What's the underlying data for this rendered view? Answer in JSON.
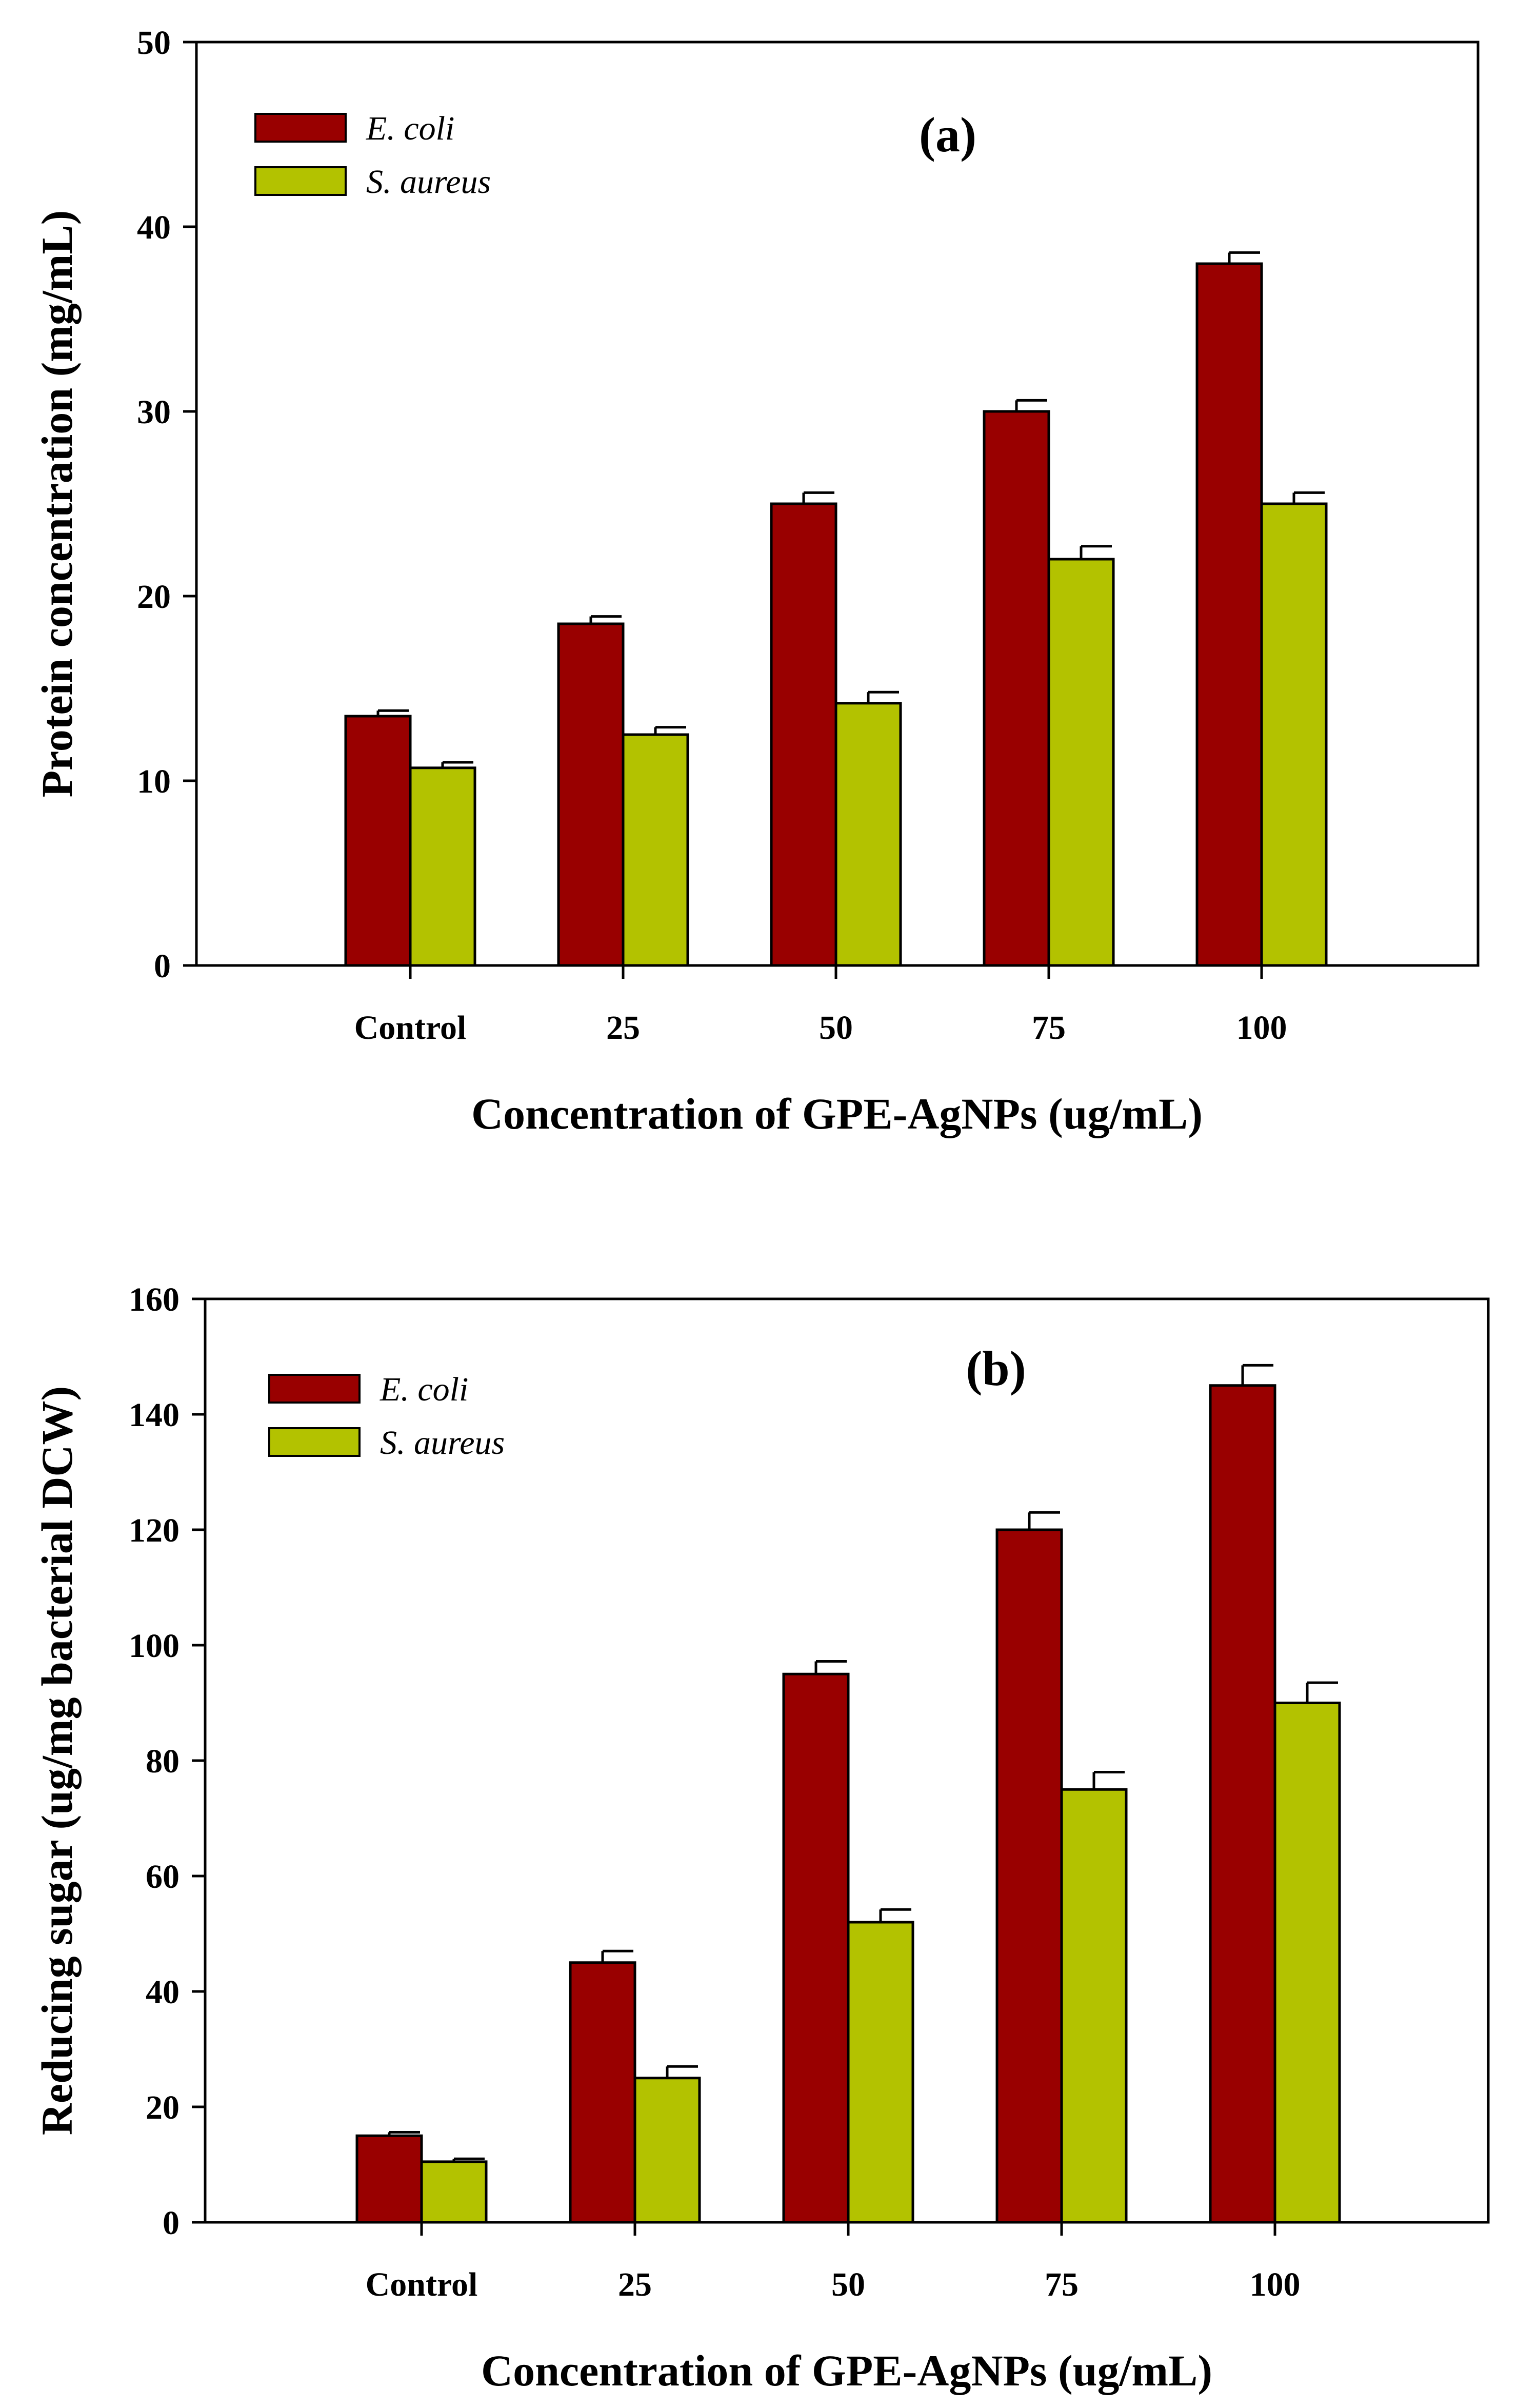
{
  "colors": {
    "ecoli": "#990000",
    "saureus": "#b3c200",
    "axis": "#000000"
  },
  "chart_data": [
    {
      "type": "bar",
      "panel": "(a)",
      "title": "",
      "xlabel": "Concentration of GPE-AgNPs (ug/mL)",
      "ylabel": "Protein concentration (mg/mL)",
      "ylim": [
        0,
        50
      ],
      "yticks": [
        "0",
        "10",
        "20",
        "30",
        "40",
        "50"
      ],
      "categories": [
        "Control",
        "25",
        "50",
        "75",
        "100"
      ],
      "legend_position": "top-left",
      "series": [
        {
          "name": "E. coli",
          "values": [
            13.5,
            18.5,
            25,
            30,
            38
          ],
          "errors": [
            0.3,
            0.4,
            0.6,
            0.6,
            0.6
          ]
        },
        {
          "name": "S. aureus",
          "values": [
            10.7,
            12.5,
            14.2,
            22,
            25
          ],
          "errors": [
            0.3,
            0.4,
            0.6,
            0.7,
            0.6
          ]
        }
      ]
    },
    {
      "type": "bar",
      "panel": "(b)",
      "title": "",
      "xlabel": "Concentration of GPE-AgNPs (ug/mL)",
      "ylabel": "Reducing sugar (ug/mg bacterial DCW)",
      "ylim": [
        0,
        160
      ],
      "yticks": [
        "0",
        "20",
        "40",
        "60",
        "80",
        "100",
        "120",
        "140",
        "160"
      ],
      "categories": [
        "Control",
        "25",
        "50",
        "75",
        "100"
      ],
      "legend_position": "top-left",
      "series": [
        {
          "name": "E. coli",
          "values": [
            15,
            45,
            95,
            120,
            145
          ],
          "errors": [
            0.6,
            2,
            2.2,
            3,
            3.5
          ]
        },
        {
          "name": "S. aureus",
          "values": [
            10.5,
            25,
            52,
            75,
            90
          ],
          "errors": [
            0.5,
            2,
            2.2,
            3,
            3.5
          ]
        }
      ]
    }
  ]
}
